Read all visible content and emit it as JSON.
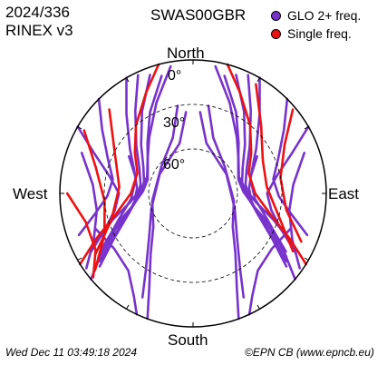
{
  "header": {
    "year_doy": "2024/336",
    "rinex": "RINEX v3",
    "station": "SWAS00GBR"
  },
  "legend": {
    "items": [
      {
        "label": "GLO 2+ freq.",
        "color": "#7733cc"
      },
      {
        "label": "Single freq.",
        "color": "#ee1111"
      }
    ]
  },
  "footer": {
    "timestamp": "Wed Dec 11 03:49:18 2024",
    "credit": "©EPN CB (www.epncb.eu)"
  },
  "chart_data": {
    "type": "polar-skyplot",
    "cardinal_labels": {
      "north": "North",
      "south": "South",
      "west": "West",
      "east": "East"
    },
    "elevation_rings": [
      {
        "elevation_deg": 0,
        "label": "0°",
        "style": "solid"
      },
      {
        "elevation_deg": 30,
        "label": "30°",
        "style": "dashed"
      },
      {
        "elevation_deg": 60,
        "label": "60°",
        "style": "dashed"
      }
    ],
    "series": [
      {
        "name": "GLO 2+ freq.",
        "color": "#7733cc",
        "tracks": [
          [
            [
              330,
              0
            ],
            [
              320,
              20
            ],
            [
              305,
              38
            ],
            [
              290,
              48
            ],
            [
              275,
              52
            ],
            [
              262,
              50
            ],
            [
              250,
              42
            ],
            [
              240,
              28
            ],
            [
              232,
              10
            ]
          ],
          [
            [
              335,
              2
            ],
            [
              325,
              22
            ],
            [
              310,
              40
            ],
            [
              295,
              50
            ],
            [
              280,
              54
            ],
            [
              265,
              52
            ],
            [
              252,
              44
            ],
            [
              242,
              30
            ],
            [
              234,
              12
            ]
          ],
          [
            [
              340,
              5
            ],
            [
              328,
              25
            ],
            [
              313,
              42
            ],
            [
              298,
              52
            ],
            [
              283,
              56
            ],
            [
              268,
              54
            ],
            [
              255,
              46
            ],
            [
              245,
              32
            ],
            [
              236,
              14
            ]
          ],
          [
            [
              345,
              8
            ],
            [
              332,
              28
            ],
            [
              318,
              44
            ],
            [
              302,
              54
            ],
            [
              287,
              58
            ],
            [
              272,
              56
            ],
            [
              258,
              48
            ],
            [
              248,
              34
            ],
            [
              238,
              16
            ]
          ],
          [
            [
              350,
              3
            ],
            [
              338,
              24
            ],
            [
              322,
              42
            ],
            [
              306,
              52
            ],
            [
              290,
              57
            ],
            [
              276,
              55
            ],
            [
              262,
              47
            ],
            [
              252,
              33
            ],
            [
              243,
              14
            ]
          ],
          [
            [
              30,
              0
            ],
            [
              40,
              20
            ],
            [
              55,
              38
            ],
            [
              70,
              48
            ],
            [
              85,
              52
            ],
            [
              98,
              50
            ],
            [
              110,
              42
            ],
            [
              120,
              28
            ],
            [
              128,
              10
            ]
          ],
          [
            [
              25,
              2
            ],
            [
              35,
              22
            ],
            [
              50,
              40
            ],
            [
              65,
              50
            ],
            [
              80,
              54
            ],
            [
              95,
              52
            ],
            [
              108,
              44
            ],
            [
              118,
              30
            ],
            [
              126,
              12
            ]
          ],
          [
            [
              20,
              5
            ],
            [
              32,
              25
            ],
            [
              47,
              42
            ],
            [
              62,
              52
            ],
            [
              77,
              56
            ],
            [
              92,
              54
            ],
            [
              105,
              46
            ],
            [
              115,
              32
            ],
            [
              124,
              14
            ]
          ],
          [
            [
              15,
              8
            ],
            [
              28,
              28
            ],
            [
              42,
              44
            ],
            [
              58,
              54
            ],
            [
              73,
              58
            ],
            [
              88,
              56
            ],
            [
              102,
              48
            ],
            [
              112,
              34
            ],
            [
              122,
              16
            ]
          ],
          [
            [
              10,
              3
            ],
            [
              22,
              24
            ],
            [
              38,
              42
            ],
            [
              54,
              52
            ],
            [
              70,
              57
            ],
            [
              84,
              55
            ],
            [
              98,
              47
            ],
            [
              108,
              33
            ],
            [
              117,
              14
            ]
          ],
          [
            [
              300,
              0
            ],
            [
              292,
              18
            ],
            [
              282,
              32
            ],
            [
              270,
              40
            ],
            [
              258,
              36
            ],
            [
              248,
              26
            ],
            [
              240,
              10
            ]
          ],
          [
            [
              60,
              0
            ],
            [
              68,
              18
            ],
            [
              78,
              32
            ],
            [
              90,
              40
            ],
            [
              102,
              36
            ],
            [
              112,
              26
            ],
            [
              120,
              10
            ]
          ],
          [
            [
              315,
              0
            ],
            [
              305,
              15
            ],
            [
              292,
              28
            ],
            [
              280,
              35
            ],
            [
              268,
              32
            ],
            [
              258,
              22
            ],
            [
              250,
              8
            ]
          ],
          [
            [
              45,
              0
            ],
            [
              55,
              15
            ],
            [
              68,
              28
            ],
            [
              80,
              35
            ],
            [
              92,
              32
            ],
            [
              102,
              22
            ],
            [
              110,
              8
            ]
          ],
          [
            [
              350,
              30
            ],
            [
              340,
              50
            ],
            [
              310,
              62
            ],
            [
              260,
              62
            ],
            [
              230,
              55
            ],
            [
              215,
              40
            ],
            [
              205,
              20
            ],
            [
              200,
              0
            ]
          ],
          [
            [
              10,
              30
            ],
            [
              20,
              50
            ],
            [
              50,
              62
            ],
            [
              100,
              62
            ],
            [
              130,
              55
            ],
            [
              145,
              40
            ],
            [
              155,
              20
            ],
            [
              160,
              0
            ]
          ],
          [
            [
              355,
              35
            ],
            [
              345,
              55
            ],
            [
              300,
              64
            ],
            [
              250,
              60
            ],
            [
              225,
              48
            ],
            [
              212,
              30
            ],
            [
              206,
              12
            ]
          ],
          [
            [
              5,
              35
            ],
            [
              15,
              55
            ],
            [
              60,
              64
            ],
            [
              110,
              60
            ],
            [
              135,
              48
            ],
            [
              148,
              30
            ],
            [
              154,
              12
            ]
          ],
          [
            [
              300,
              40
            ],
            [
              285,
              50
            ],
            [
              265,
              48
            ],
            [
              250,
              36
            ],
            [
              238,
              18
            ],
            [
              230,
              0
            ]
          ],
          [
            [
              60,
              40
            ],
            [
              75,
              50
            ],
            [
              95,
              48
            ],
            [
              110,
              36
            ],
            [
              122,
              18
            ],
            [
              130,
              0
            ]
          ],
          [
            [
              250,
              20
            ],
            [
              235,
              25
            ],
            [
              220,
              22
            ],
            [
              210,
              10
            ],
            [
              205,
              0
            ]
          ],
          [
            [
              110,
              20
            ],
            [
              125,
              25
            ],
            [
              140,
              22
            ],
            [
              150,
              10
            ],
            [
              155,
              0
            ]
          ],
          [
            [
              290,
              10
            ],
            [
              275,
              22
            ],
            [
              260,
              24
            ],
            [
              245,
              16
            ],
            [
              235,
              2
            ]
          ],
          [
            [
              70,
              10
            ],
            [
              85,
              22
            ],
            [
              100,
              24
            ],
            [
              115,
              16
            ],
            [
              125,
              2
            ]
          ]
        ]
      },
      {
        "name": "Single freq.",
        "color": "#ee1111",
        "tracks": [
          [
            [
              300,
              5
            ],
            [
              285,
              22
            ],
            [
              265,
              30
            ],
            [
              245,
              24
            ],
            [
              232,
              6
            ]
          ],
          [
            [
              315,
              10
            ],
            [
              298,
              30
            ],
            [
              275,
              40
            ],
            [
              252,
              32
            ],
            [
              238,
              12
            ]
          ],
          [
            [
              30,
              5
            ],
            [
              45,
              25
            ],
            [
              65,
              38
            ],
            [
              85,
              40
            ],
            [
              105,
              30
            ],
            [
              120,
              12
            ]
          ],
          [
            [
              50,
              2
            ],
            [
              62,
              20
            ],
            [
              80,
              30
            ],
            [
              100,
              26
            ],
            [
              114,
              10
            ]
          ],
          [
            [
              15,
              0
            ],
            [
              25,
              15
            ],
            [
              40,
              30
            ],
            [
              55,
              42
            ],
            [
              70,
              50
            ],
            [
              90,
              48
            ],
            [
              105,
              36
            ],
            [
              115,
              18
            ],
            [
              122,
              0
            ]
          ],
          [
            [
              345,
              0
            ],
            [
              335,
              15
            ],
            [
              320,
              30
            ],
            [
              305,
              42
            ],
            [
              290,
              50
            ],
            [
              270,
              48
            ],
            [
              255,
              36
            ],
            [
              245,
              18
            ],
            [
              238,
              0
            ]
          ],
          [
            [
              270,
              5
            ],
            [
              255,
              15
            ],
            [
              240,
              14
            ],
            [
              230,
              2
            ]
          ]
        ]
      }
    ]
  }
}
